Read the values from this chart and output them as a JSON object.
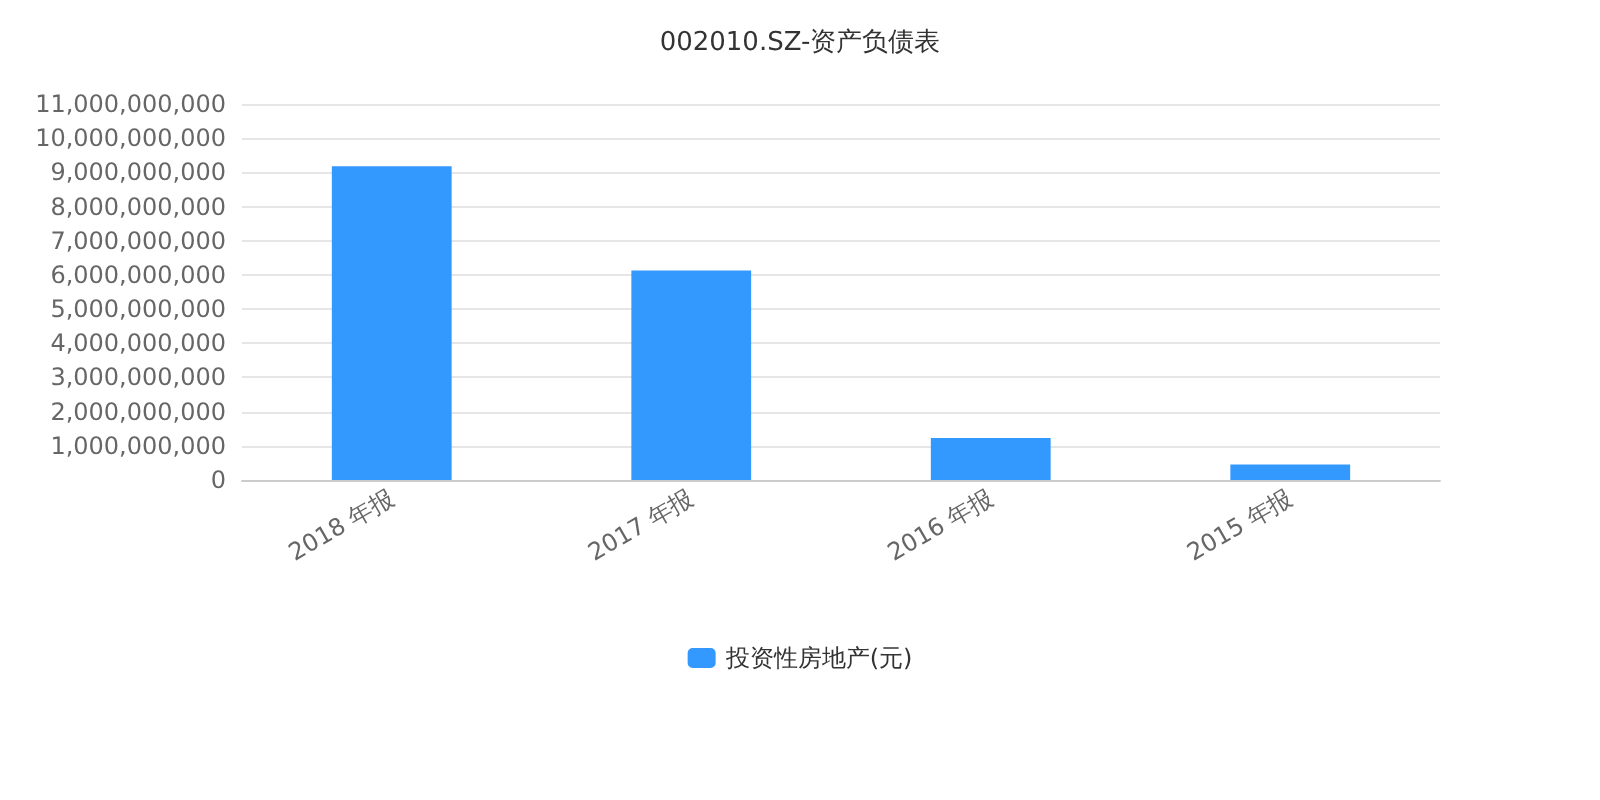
{
  "chart_data": {
    "type": "bar",
    "title": "002010.SZ-资产负债表",
    "categories": [
      "2018 年报",
      "2017 年报",
      "2016 年报",
      "2015 年报"
    ],
    "series": [
      {
        "name": "投资性房地产(元)",
        "color": "#3399ff",
        "values": [
          9180000000,
          6130000000,
          1230000000,
          450000000
        ]
      }
    ],
    "ylim": [
      0,
      11000000000
    ],
    "yticks": [
      0,
      {
        "value": 1000000000,
        "label": "1,000,000,000"
      },
      {
        "value": 2000000000,
        "label": "2,000,000,000"
      },
      {
        "value": 3000000000,
        "label": "3,000,000,000"
      },
      {
        "value": 4000000000,
        "label": "4,000,000,000"
      },
      {
        "value": 5000000000,
        "label": "5,000,000,000"
      },
      {
        "value": 6000000000,
        "label": "6,000,000,000"
      },
      {
        "value": 7000000000,
        "label": "7,000,000,000"
      },
      {
        "value": 8000000000,
        "label": "8,000,000,000"
      },
      {
        "value": 9000000000,
        "label": "9,000,000,000"
      },
      {
        "value": 10000000000,
        "label": "10,000,000,000"
      },
      {
        "value": 11000000000,
        "label": "11,000,000,000"
      }
    ],
    "grid": "y",
    "legend": "bottom"
  }
}
